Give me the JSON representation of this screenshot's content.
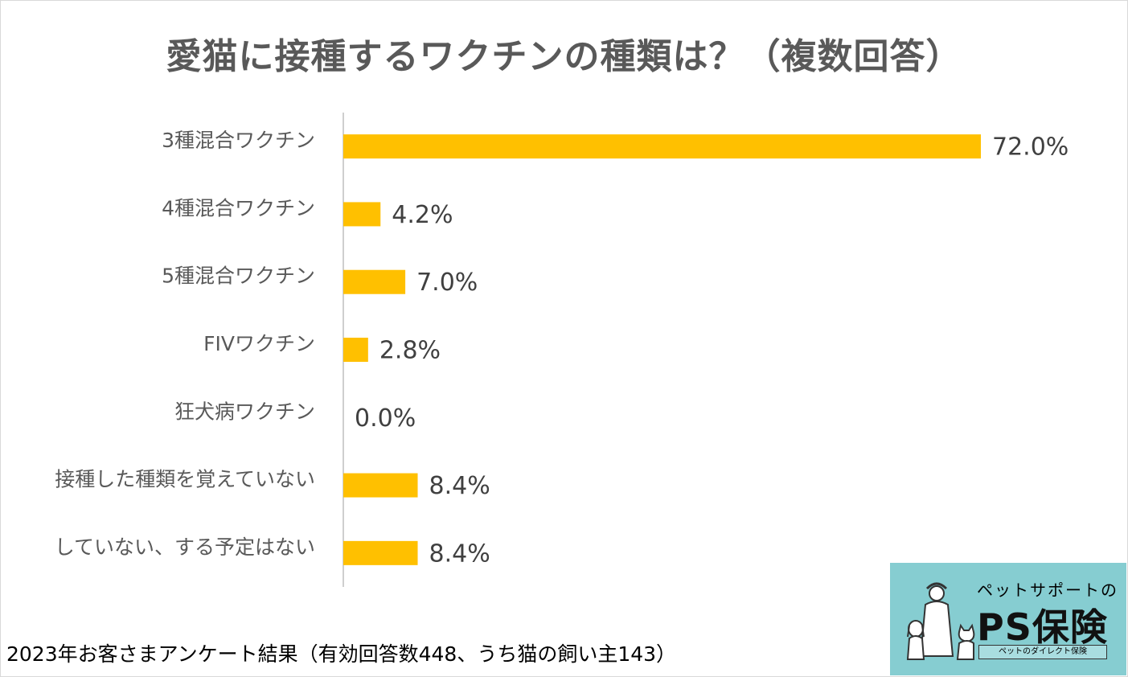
{
  "title": "愛猫に接種するワクチンの種類は？（複数回答）",
  "footer": "2023年お客さまアンケート結果（有効回答数448、うち猫の飼い主143）",
  "logo": {
    "line1": "ペットサポートの",
    "main": "PS保険",
    "line2": "ペットのダイレクト保険"
  },
  "colors": {
    "bar": "#ffc000",
    "text": "#595959",
    "axis": "#bfbfbf",
    "logo_bg": "#86cdd1"
  },
  "chart_data": {
    "type": "bar",
    "orientation": "horizontal",
    "categories": [
      "3種混合ワクチン",
      "4種混合ワクチン",
      "5種混合ワクチン",
      "FIVワクチン",
      "狂犬病ワクチン",
      "接種した種類を覚えていない",
      "していない、する予定はない"
    ],
    "values": [
      72.0,
      4.2,
      7.0,
      2.8,
      0.0,
      8.4,
      8.4
    ],
    "value_labels": [
      "72.0%",
      "4.2%",
      "7.0%",
      "2.8%",
      "0.0%",
      "8.4%",
      "8.4%"
    ],
    "unit": "%",
    "xlim": [
      0,
      72.0
    ],
    "grid": false,
    "legend": "none"
  }
}
